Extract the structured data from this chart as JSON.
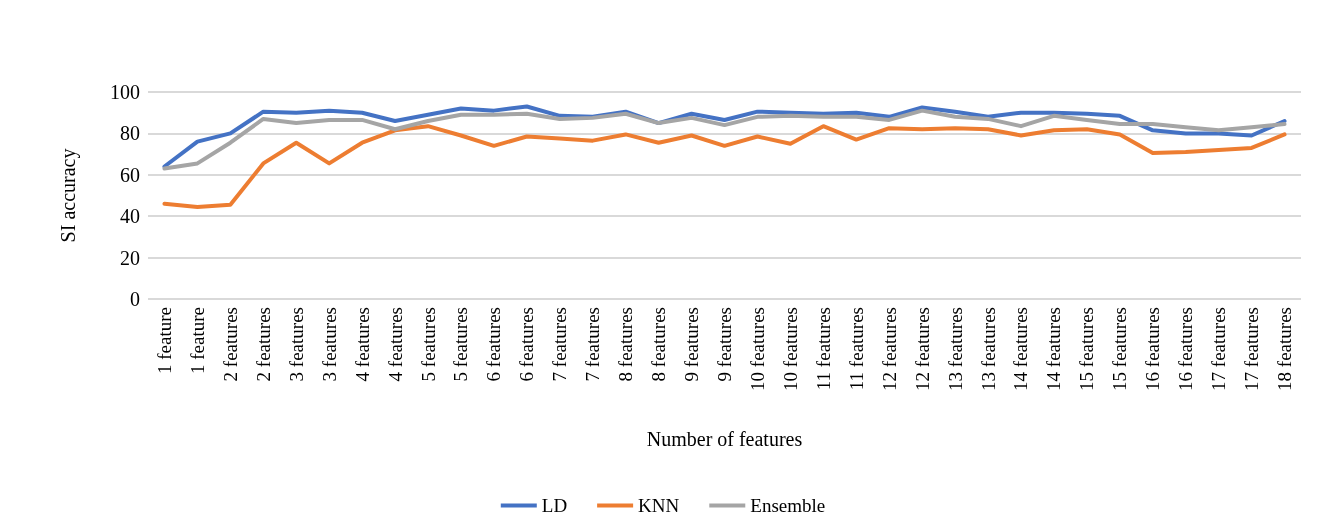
{
  "chart_data": {
    "type": "line",
    "xlabel": "Number of features",
    "ylabel": "SI accuracy",
    "categories": [
      "1 feature",
      "1 feature",
      "2 features",
      "2 features",
      "3 features",
      "3 features",
      "4 features",
      "4 features",
      "5 features",
      "5 features",
      "6 features",
      "6 features",
      "7 features",
      "7 features",
      "8 features",
      "8 features",
      "9 features",
      "9 features",
      "10 features",
      "10 features",
      "11 features",
      "11 features",
      "12 features",
      "12 features",
      "13 features",
      "13 features",
      "14 features",
      "14 features",
      "15 features",
      "15 features",
      "16 features",
      "16 features",
      "17 features",
      "17 features",
      "18 features"
    ],
    "series": [
      {
        "name": "LD",
        "color": "#4472c4",
        "values": [
          64,
          76,
          80,
          90.5,
          90,
          91,
          90,
          86,
          89,
          92,
          91,
          93,
          88.5,
          88,
          90.5,
          85,
          89.5,
          86.5,
          90.5,
          90,
          89.5,
          90,
          88,
          92.5,
          90.5,
          88,
          90,
          90,
          89.5,
          88.5,
          81.5,
          80,
          80,
          79,
          86
        ]
      },
      {
        "name": "KNN",
        "color": "#ed7d31",
        "values": [
          46,
          44.5,
          45.5,
          65.5,
          75.5,
          65.5,
          75.5,
          81.5,
          83.5,
          79,
          74,
          78.5,
          77.5,
          76.5,
          79.5,
          75.5,
          79,
          74,
          78.5,
          75,
          83.5,
          77,
          82.5,
          82,
          82.5,
          82,
          79,
          81.5,
          82,
          79.5,
          70.5,
          71,
          72,
          73,
          79.5
        ]
      },
      {
        "name": "Ensemble",
        "color": "#a5a5a5",
        "values": [
          63,
          65.5,
          75.5,
          87,
          85,
          86.5,
          86.5,
          82,
          86,
          89,
          89,
          89.5,
          87,
          87.5,
          89.5,
          85,
          87.5,
          84,
          88,
          88.5,
          88,
          88,
          86.5,
          91,
          88,
          87,
          83.5,
          88.5,
          86.5,
          84.5,
          84.5,
          83,
          81.5,
          83,
          84.5
        ]
      }
    ],
    "ylim": [
      0,
      100
    ],
    "yticks": [
      0,
      20,
      40,
      60,
      80,
      100
    ],
    "grid": "y",
    "legend": "bottom",
    "marker": "none",
    "line_style": "solid"
  }
}
